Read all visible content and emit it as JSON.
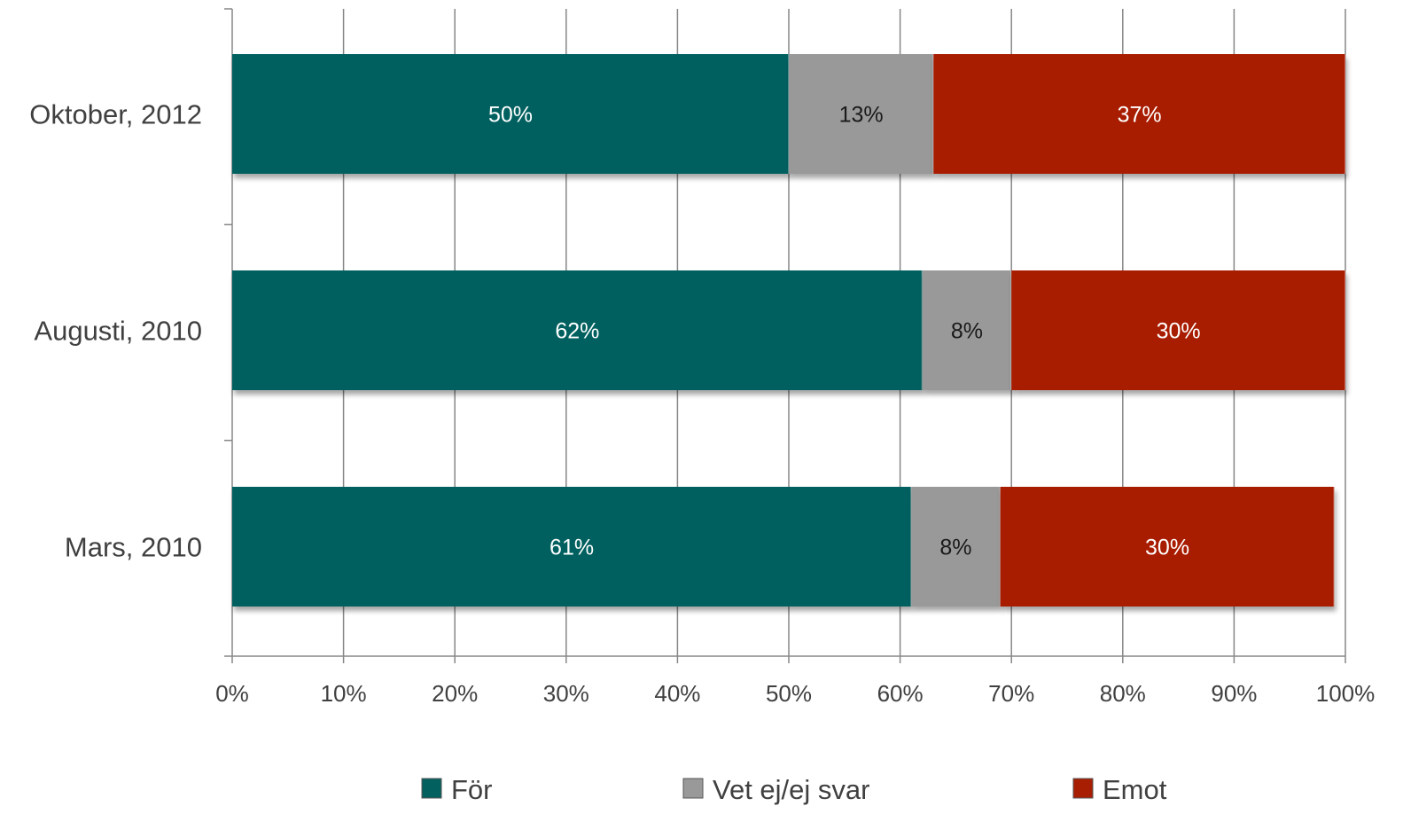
{
  "chart_data": {
    "type": "bar",
    "orientation": "horizontal",
    "stacked": "percent",
    "categories": [
      "Oktober, 2012",
      "Augusti, 2010",
      "Mars, 2010"
    ],
    "series": [
      {
        "name": "För",
        "values": [
          50,
          62,
          61
        ],
        "labels": [
          "50%",
          "62%",
          "61%"
        ],
        "color": "#02615F",
        "label_color": "#ffffff"
      },
      {
        "name": "Vet ej/ej svar",
        "values": [
          13,
          8,
          8
        ],
        "labels": [
          "13%",
          "8%",
          "8%"
        ],
        "color": "#999999",
        "label_color": "#1a1a1a"
      },
      {
        "name": "Emot",
        "values": [
          37,
          30,
          30
        ],
        "labels": [
          "37%",
          "30%",
          "30%"
        ],
        "color": "#A81E03",
        "label_color": "#ffffff"
      }
    ],
    "x_ticks": [
      "0%",
      "10%",
      "20%",
      "30%",
      "40%",
      "50%",
      "60%",
      "70%",
      "80%",
      "90%",
      "100%"
    ],
    "xlim": [
      0,
      100
    ],
    "grid": "vertical",
    "legend": "bottom"
  }
}
